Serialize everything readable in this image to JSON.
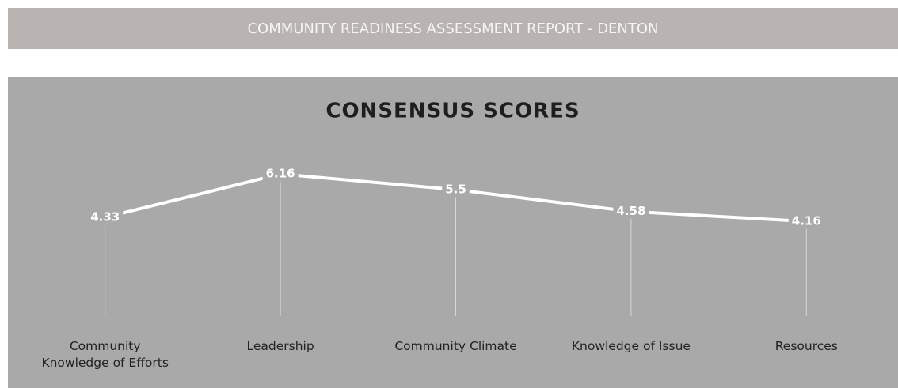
{
  "header": {
    "title": "COMMUNITY READINESS ASSESSMENT REPORT - DENTON"
  },
  "chart_data": {
    "type": "line",
    "title": "CONSENSUS SCORES",
    "categories": [
      "Community\nKnowledge of Efforts",
      "Leadership",
      "Community Climate",
      "Knowledge of Issue",
      "Resources"
    ],
    "values": [
      4.33,
      6.16,
      5.5,
      4.58,
      4.16
    ],
    "color": "#ffffff",
    "drop_lines": true,
    "ylim": [
      0,
      10
    ]
  }
}
